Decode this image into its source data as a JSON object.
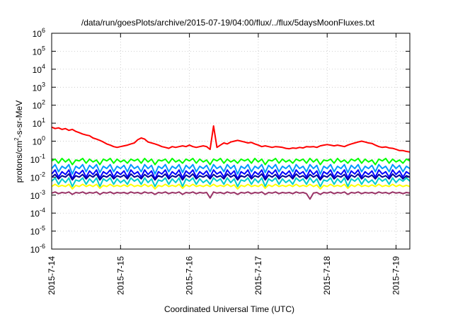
{
  "chart_data": {
    "type": "line",
    "title": "/data/run/goesPlots/archive/2015-07-19/04:00/flux/../flux/5daysMoonFluxes.txt",
    "xlabel": "Coordinated Universal Time (UTC)",
    "ylabel": {
      "base": "protons/cm",
      "sup": "2",
      "rest": "-s-sr-MeV"
    },
    "xlim": [
      0,
      5.2
    ],
    "ylim": [
      -6,
      6
    ],
    "yscale": "log",
    "grid": true,
    "legend": "none",
    "x_ticks": [
      {
        "x": 0,
        "label": "2015-7-14"
      },
      {
        "x": 1,
        "label": "2015-7-15"
      },
      {
        "x": 2,
        "label": "2015-7-16"
      },
      {
        "x": 3,
        "label": "2015-7-17"
      },
      {
        "x": 4,
        "label": "2015-7-18"
      },
      {
        "x": 5,
        "label": "2015-7-19"
      }
    ],
    "y_ticks": [
      {
        "exp": 6,
        "label": "10",
        "sup": "6"
      },
      {
        "exp": 5,
        "label": "10",
        "sup": "5"
      },
      {
        "exp": 4,
        "label": "10",
        "sup": "4"
      },
      {
        "exp": 3,
        "label": "10",
        "sup": "3"
      },
      {
        "exp": 2,
        "label": "10",
        "sup": "2"
      },
      {
        "exp": 1,
        "label": "10",
        "sup": "1"
      },
      {
        "exp": 0,
        "label": "10",
        "sup": "0"
      },
      {
        "exp": -1,
        "label": "10",
        "sup": "-1"
      },
      {
        "exp": -2,
        "label": "10",
        "sup": "-2"
      },
      {
        "exp": -3,
        "label": "10",
        "sup": "-3"
      },
      {
        "exp": -4,
        "label": "10",
        "sup": "-4"
      },
      {
        "exp": -5,
        "label": "10",
        "sup": "-5"
      },
      {
        "exp": -6,
        "label": "10",
        "sup": "-6"
      }
    ],
    "series": [
      {
        "color": "#00ff00",
        "width": 2,
        "x_step": 0.05,
        "values": [
          0.08,
          0.1,
          0.06,
          0.11,
          0.07,
          0.1,
          0.05,
          0.09,
          0.08,
          0.11,
          0.06,
          0.1,
          0.07,
          0.09,
          0.05,
          0.1,
          0.08,
          0.11,
          0.06,
          0.1,
          0.07,
          0.09,
          0.06,
          0.1,
          0.08,
          0.1,
          0.06,
          0.11,
          0.07,
          0.1,
          0.05,
          0.09,
          0.08,
          0.1,
          0.06,
          0.11,
          0.07,
          0.09,
          0.06,
          0.1,
          0.08,
          0.11,
          0.06,
          0.1,
          0.07,
          0.09,
          0.05,
          0.1,
          0.08,
          0.11,
          0.06,
          0.1,
          0.07,
          0.09,
          0.06,
          0.1,
          0.08,
          0.1,
          0.06,
          0.11,
          0.07,
          0.1,
          0.05,
          0.09,
          0.08,
          0.11,
          0.06,
          0.1,
          0.07,
          0.09,
          0.06,
          0.1,
          0.08,
          0.1,
          0.06,
          0.11,
          0.07,
          0.1,
          0.05,
          0.09,
          0.08,
          0.1,
          0.06,
          0.11,
          0.07,
          0.09,
          0.06,
          0.1,
          0.08,
          0.11,
          0.06,
          0.1,
          0.07,
          0.09,
          0.05,
          0.1,
          0.08,
          0.11,
          0.06,
          0.1,
          0.07,
          0.09,
          0.06,
          0.1,
          0.08
        ]
      },
      {
        "color": "#00cccc",
        "width": 2,
        "x_step": 0.05,
        "values": [
          0.006,
          0.009,
          0.004,
          0.008,
          0.005,
          0.009,
          0.003,
          0.007,
          0.006,
          0.009,
          0.004,
          0.008,
          0.005,
          0.009,
          0.003,
          0.008,
          0.006,
          0.009,
          0.004,
          0.008,
          0.005,
          0.007,
          0.004,
          0.009,
          0.006,
          0.008,
          0.004,
          0.009,
          0.005,
          0.008,
          0.003,
          0.007,
          0.006,
          0.009,
          0.004,
          0.008,
          0.005,
          0.009,
          0.003,
          0.008,
          0.006,
          0.009,
          0.004,
          0.008,
          0.005,
          0.007,
          0.004,
          0.009,
          0.006,
          0.008,
          0.004,
          0.009,
          0.005,
          0.008,
          0.003,
          0.007,
          0.006,
          0.009,
          0.004,
          0.008,
          0.005,
          0.009,
          0.003,
          0.008,
          0.006,
          0.009,
          0.004,
          0.008,
          0.005,
          0.007,
          0.004,
          0.009,
          0.006,
          0.008,
          0.004,
          0.009,
          0.005,
          0.008,
          0.003,
          0.007,
          0.006,
          0.009,
          0.004,
          0.008,
          0.005,
          0.009,
          0.003,
          0.008,
          0.006,
          0.009,
          0.004,
          0.008,
          0.005,
          0.007,
          0.004,
          0.009,
          0.006,
          0.008,
          0.004,
          0.009,
          0.005,
          0.008,
          0.006,
          0.009,
          0.006
        ]
      },
      {
        "color": "#0099ff",
        "width": 2,
        "x_step": 0.05,
        "values": [
          0.03,
          0.05,
          0.02,
          0.04,
          0.03,
          0.05,
          0.015,
          0.04,
          0.03,
          0.05,
          0.02,
          0.045,
          0.03,
          0.05,
          0.018,
          0.04,
          0.03,
          0.05,
          0.02,
          0.04,
          0.03,
          0.045,
          0.02,
          0.05,
          0.03,
          0.04,
          0.02,
          0.05,
          0.03,
          0.045,
          0.015,
          0.04,
          0.03,
          0.05,
          0.02,
          0.04,
          0.03,
          0.05,
          0.018,
          0.045,
          0.03,
          0.05,
          0.02,
          0.04,
          0.03,
          0.045,
          0.02,
          0.05,
          0.03,
          0.04,
          0.02,
          0.05,
          0.03,
          0.045,
          0.015,
          0.04,
          0.03,
          0.05,
          0.02,
          0.04,
          0.03,
          0.05,
          0.018,
          0.045,
          0.03,
          0.05,
          0.02,
          0.04,
          0.03,
          0.045,
          0.02,
          0.05,
          0.03,
          0.04,
          0.02,
          0.05,
          0.03,
          0.045,
          0.015,
          0.04,
          0.03,
          0.05,
          0.02,
          0.04,
          0.03,
          0.05,
          0.018,
          0.045,
          0.03,
          0.05,
          0.02,
          0.04,
          0.03,
          0.045,
          0.02,
          0.05,
          0.03,
          0.04,
          0.02,
          0.05,
          0.03,
          0.045,
          0.02,
          0.04,
          0.03
        ]
      },
      {
        "color": "#0000ff",
        "width": 2,
        "x_step": 0.05,
        "values": [
          0.015,
          0.025,
          0.01,
          0.02,
          0.014,
          0.025,
          0.008,
          0.02,
          0.015,
          0.024,
          0.01,
          0.022,
          0.014,
          0.025,
          0.009,
          0.02,
          0.015,
          0.025,
          0.01,
          0.02,
          0.014,
          0.022,
          0.01,
          0.025,
          0.015,
          0.02,
          0.01,
          0.025,
          0.014,
          0.022,
          0.008,
          0.02,
          0.015,
          0.025,
          0.01,
          0.02,
          0.014,
          0.025,
          0.009,
          0.022,
          0.015,
          0.025,
          0.01,
          0.02,
          0.014,
          0.022,
          0.01,
          0.025,
          0.015,
          0.02,
          0.01,
          0.025,
          0.014,
          0.022,
          0.008,
          0.02,
          0.015,
          0.025,
          0.01,
          0.02,
          0.014,
          0.025,
          0.009,
          0.022,
          0.015,
          0.025,
          0.01,
          0.02,
          0.014,
          0.022,
          0.01,
          0.025,
          0.015,
          0.02,
          0.01,
          0.025,
          0.014,
          0.022,
          0.008,
          0.02,
          0.015,
          0.025,
          0.01,
          0.02,
          0.014,
          0.025,
          0.009,
          0.022,
          0.015,
          0.025,
          0.01,
          0.02,
          0.014,
          0.022,
          0.01,
          0.025,
          0.015,
          0.02,
          0.01,
          0.025,
          0.014,
          0.022,
          0.01,
          0.02,
          0.015
        ]
      },
      {
        "color": "#000099",
        "width": 2,
        "x_step": 0.05,
        "values": [
          0.01,
          0.014,
          0.008,
          0.012,
          0.01,
          0.015,
          0.007,
          0.012,
          0.01,
          0.014,
          0.008,
          0.013,
          0.01,
          0.015,
          0.007,
          0.012,
          0.01,
          0.014,
          0.008,
          0.012,
          0.01,
          0.013,
          0.008,
          0.015,
          0.01,
          0.012,
          0.008,
          0.014,
          0.01,
          0.013,
          0.007,
          0.012,
          0.01,
          0.015,
          0.008,
          0.012,
          0.01,
          0.014,
          0.007,
          0.013,
          0.01,
          0.015,
          0.008,
          0.012,
          0.01,
          0.013,
          0.008,
          0.014,
          0.01,
          0.012,
          0.008,
          0.015,
          0.01,
          0.013,
          0.007,
          0.012,
          0.01,
          0.014,
          0.008,
          0.012,
          0.01,
          0.015,
          0.007,
          0.013,
          0.01,
          0.014,
          0.008,
          0.012,
          0.01,
          0.013,
          0.008,
          0.015,
          0.01,
          0.012,
          0.008,
          0.014,
          0.01,
          0.013,
          0.007,
          0.012,
          0.01,
          0.015,
          0.008,
          0.012,
          0.01,
          0.014,
          0.007,
          0.013,
          0.01,
          0.015,
          0.008,
          0.012,
          0.01,
          0.013,
          0.008,
          0.014,
          0.01,
          0.012,
          0.008,
          0.015,
          0.01,
          0.013,
          0.008,
          0.012,
          0.01
        ]
      },
      {
        "color": "#ffff00",
        "width": 2,
        "x_step": 0.05,
        "values": [
          0.003,
          0.004,
          0.003,
          0.0035,
          0.003,
          0.004,
          0.0022,
          0.0035,
          0.003,
          0.004,
          0.003,
          0.0037,
          0.003,
          0.004,
          0.0024,
          0.0035,
          0.003,
          0.004,
          0.003,
          0.0035,
          0.003,
          0.0037,
          0.003,
          0.004,
          0.003,
          0.0035,
          0.003,
          0.004,
          0.003,
          0.0037,
          0.0022,
          0.0035,
          0.003,
          0.004,
          0.003,
          0.0035,
          0.003,
          0.004,
          0.0024,
          0.0037,
          0.003,
          0.004,
          0.003,
          0.0035,
          0.003,
          0.0037,
          0.003,
          0.004,
          0.003,
          0.0035,
          0.003,
          0.004,
          0.003,
          0.0037,
          0.0022,
          0.0035,
          0.003,
          0.004,
          0.003,
          0.0035,
          0.003,
          0.004,
          0.0024,
          0.0037,
          0.003,
          0.004,
          0.003,
          0.0035,
          0.003,
          0.0037,
          0.003,
          0.004,
          0.003,
          0.0035,
          0.003,
          0.004,
          0.003,
          0.0037,
          0.0022,
          0.0035,
          0.003,
          0.004,
          0.003,
          0.0035,
          0.003,
          0.004,
          0.0024,
          0.0037,
          0.003,
          0.004,
          0.003,
          0.0035,
          0.003,
          0.0037,
          0.003,
          0.004,
          0.003,
          0.0035,
          0.003,
          0.004,
          0.003,
          0.0037,
          0.003,
          0.0035,
          0.003
        ]
      },
      {
        "color": "#993366",
        "width": 2,
        "x_step": 0.05,
        "values": [
          0.0013,
          0.0015,
          0.0012,
          0.0014,
          0.0013,
          0.0015,
          0.0011,
          0.0014,
          0.0013,
          0.0015,
          0.0012,
          0.0014,
          0.0013,
          0.0015,
          0.0011,
          0.0014,
          0.0013,
          0.0015,
          0.0012,
          0.0014,
          0.0013,
          0.0014,
          0.0012,
          0.0015,
          0.0013,
          0.0014,
          0.0012,
          0.0015,
          0.0013,
          0.0014,
          0.0011,
          0.0014,
          0.0013,
          0.0015,
          0.0012,
          0.0014,
          0.0013,
          0.0015,
          0.0011,
          0.0014,
          0.0013,
          0.0015,
          0.0012,
          0.0014,
          0.0013,
          0.0014,
          0.0007,
          0.0015,
          0.0013,
          0.0014,
          0.0012,
          0.0015,
          0.0013,
          0.0014,
          0.0011,
          0.0014,
          0.0013,
          0.0015,
          0.0012,
          0.0014,
          0.0013,
          0.0015,
          0.0011,
          0.0014,
          0.0013,
          0.0015,
          0.0012,
          0.0014,
          0.0013,
          0.0014,
          0.0012,
          0.0015,
          0.0013,
          0.0014,
          0.0012,
          0.0006,
          0.0013,
          0.0014,
          0.0011,
          0.0014,
          0.0013,
          0.0015,
          0.0012,
          0.0014,
          0.0013,
          0.0015,
          0.0011,
          0.0014,
          0.0013,
          0.0015,
          0.0012,
          0.0014,
          0.0013,
          0.0014,
          0.0012,
          0.0015,
          0.0013,
          0.0014,
          0.0012,
          0.0015,
          0.0013,
          0.0014,
          0.0012,
          0.0014,
          0.0013
        ]
      },
      {
        "color": "#ff0000",
        "width": 2,
        "x_step": 0.05,
        "values": [
          6,
          5,
          5.5,
          4.5,
          5,
          4,
          4.5,
          3.5,
          3,
          2.5,
          2.2,
          2,
          1.5,
          1.3,
          1.1,
          0.9,
          0.7,
          0.6,
          0.5,
          0.45,
          0.5,
          0.55,
          0.6,
          0.7,
          0.8,
          1.2,
          1.5,
          1.3,
          0.9,
          0.8,
          0.7,
          0.6,
          0.5,
          0.45,
          0.4,
          0.5,
          0.45,
          0.5,
          0.55,
          0.5,
          0.6,
          0.5,
          0.45,
          0.5,
          0.55,
          0.5,
          0.35,
          7,
          0.45,
          0.6,
          0.8,
          0.7,
          0.9,
          1.0,
          1.1,
          1.0,
          0.9,
          0.8,
          0.85,
          0.7,
          0.6,
          0.5,
          0.55,
          0.5,
          0.45,
          0.5,
          0.48,
          0.45,
          0.4,
          0.38,
          0.42,
          0.4,
          0.45,
          0.42,
          0.5,
          0.48,
          0.5,
          0.45,
          0.55,
          0.6,
          0.65,
          0.6,
          0.55,
          0.6,
          0.55,
          0.5,
          0.6,
          0.7,
          0.8,
          0.9,
          1.0,
          0.9,
          0.8,
          0.75,
          0.6,
          0.5,
          0.45,
          0.48,
          0.42,
          0.4,
          0.35,
          0.3,
          0.3,
          0.27,
          0.25
        ]
      }
    ]
  }
}
